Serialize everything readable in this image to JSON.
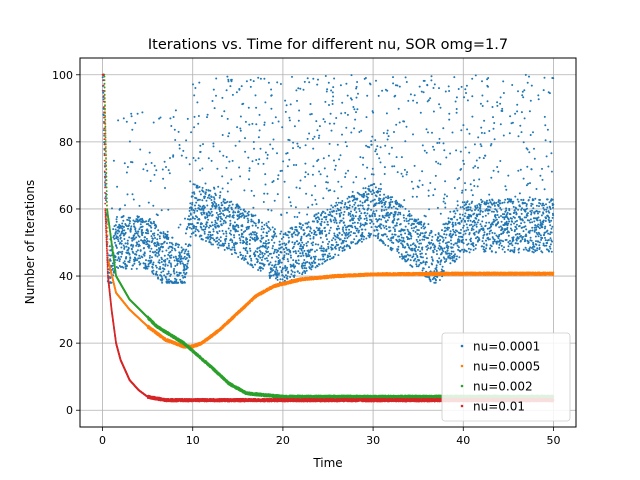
{
  "chart_data": {
    "type": "scatter",
    "title": "Iterations vs. Time for different nu, SOR omg=1.7",
    "xlabel": "Time",
    "ylabel": "Number of Iterations",
    "xlim": [
      -2.5,
      52.5
    ],
    "ylim": [
      -5,
      105
    ],
    "xticks": [
      0,
      10,
      20,
      30,
      40,
      50
    ],
    "yticks": [
      0,
      20,
      40,
      60,
      80,
      100
    ],
    "xtick_labels": [
      "0",
      "10",
      "20",
      "30",
      "40",
      "50"
    ],
    "ytick_labels": [
      "0",
      "20",
      "40",
      "60",
      "80",
      "100"
    ],
    "grid": true,
    "legend_position": "lower-right",
    "series": [
      {
        "name": "nu=0.0001",
        "color": "#1f77b4",
        "description": "noisy scatter, band mostly 40-60 with bursts to 100",
        "key_points": [
          [
            0.3,
            100
          ],
          [
            0.6,
            40
          ],
          [
            1.5,
            50
          ],
          [
            5,
            50
          ],
          [
            9,
            40
          ],
          [
            10,
            60
          ],
          [
            14,
            55
          ],
          [
            20,
            45
          ],
          [
            30,
            60
          ],
          [
            37,
            45
          ],
          [
            40,
            55
          ],
          [
            50,
            55
          ]
        ],
        "y_band": [
          38,
          100
        ]
      },
      {
        "name": "nu=0.0005",
        "color": "#ff7f0e",
        "key_points": [
          [
            0.2,
            100
          ],
          [
            0.6,
            45
          ],
          [
            1.5,
            35
          ],
          [
            3,
            30
          ],
          [
            5,
            25
          ],
          [
            7,
            21
          ],
          [
            9,
            19
          ],
          [
            10,
            19
          ],
          [
            11,
            20
          ],
          [
            13,
            24
          ],
          [
            15,
            29
          ],
          [
            17,
            34
          ],
          [
            19,
            37
          ],
          [
            22,
            39
          ],
          [
            26,
            40
          ],
          [
            30,
            40.5
          ],
          [
            40,
            40.7
          ],
          [
            50,
            40.7
          ]
        ]
      },
      {
        "name": "nu=0.002",
        "color": "#2ca02c",
        "key_points": [
          [
            0.2,
            100
          ],
          [
            0.5,
            60
          ],
          [
            1,
            50
          ],
          [
            1.5,
            40
          ],
          [
            3,
            33
          ],
          [
            6,
            25
          ],
          [
            9,
            20
          ],
          [
            12,
            13
          ],
          [
            14,
            8
          ],
          [
            16,
            5
          ],
          [
            20,
            4
          ],
          [
            30,
            4
          ],
          [
            50,
            4
          ]
        ]
      },
      {
        "name": "nu=0.01",
        "color": "#d62728",
        "key_points": [
          [
            0.1,
            100
          ],
          [
            0.3,
            60
          ],
          [
            0.6,
            40
          ],
          [
            1,
            30
          ],
          [
            1.5,
            20
          ],
          [
            2,
            15
          ],
          [
            3,
            9
          ],
          [
            4,
            6
          ],
          [
            5,
            4
          ],
          [
            7,
            3
          ],
          [
            50,
            3
          ]
        ]
      }
    ]
  }
}
